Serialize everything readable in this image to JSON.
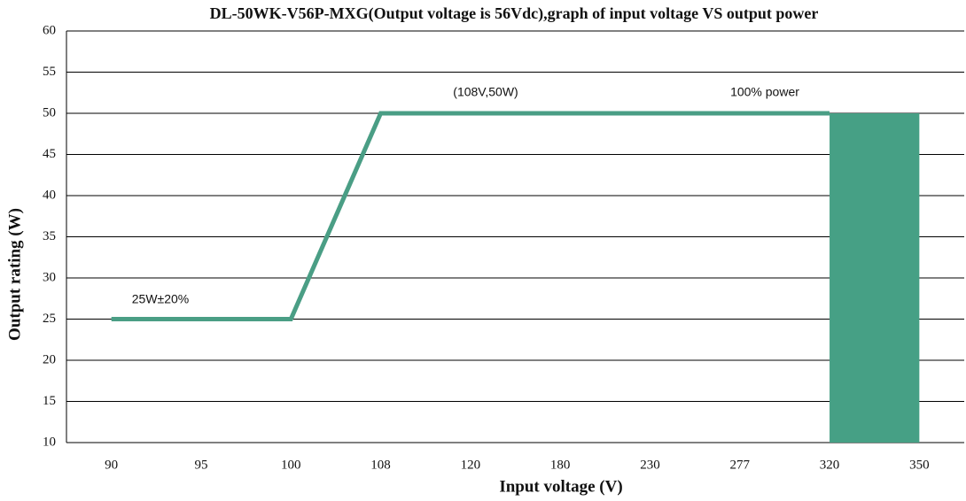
{
  "chart_data": {
    "type": "line",
    "title": "DL-50WK-V56P-MXG(Output voltage is 56Vdc),graph of input voltage VS output power",
    "x_label": "Input voltage (V)",
    "y_label": "Output rating (W)",
    "categories": [
      "90",
      "95",
      "100",
      "108",
      "120",
      "180",
      "230",
      "277",
      "320",
      "350"
    ],
    "series": [
      {
        "color": "#4a9e85",
        "values": [
          25,
          25,
          25,
          50,
          50,
          50,
          50,
          50,
          50,
          null
        ]
      },
      {
        "color": "#46a085",
        "fill": true,
        "values": [
          null,
          null,
          null,
          null,
          null,
          null,
          null,
          null,
          50,
          50
        ]
      }
    ],
    "annotations": [
      "(108V,50W)",
      "100% power",
      "25W±20%"
    ],
    "ylim": [
      10,
      60
    ],
    "yticks": [
      10,
      15,
      20,
      25,
      30,
      35,
      40,
      45,
      50,
      55,
      60
    ],
    "grid": true
  }
}
